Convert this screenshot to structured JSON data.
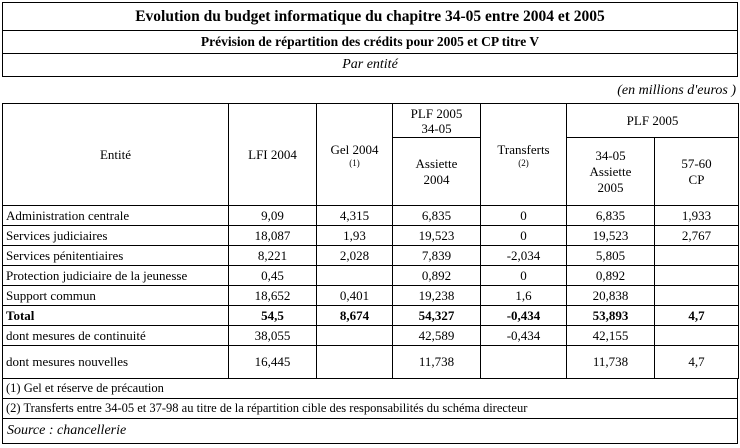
{
  "doc": {
    "title": "Evolution du budget informatique du chapitre 34-05 entre 2004 et 2005",
    "subtitle": "Prévision de répartition des crédits pour 2005 et CP titre V",
    "section_label": "Par entité",
    "unit_label": "(en millions d'euros )",
    "footnotes": [
      "(1) Gel et réserve de précaution",
      "(2) Transferts entre 34-05 et 37-98 au titre de la répartition cible des responsabilités du schéma directeur"
    ],
    "source": "Source : chancellerie"
  },
  "table": {
    "col_entity": "Entité",
    "col_lfi": "LFI 2004",
    "col_gel": "Gel 2004",
    "col_gel_note": "(1)",
    "col_plf_top_l1": "PLF 2005",
    "col_plf_top_l2": "34-05",
    "col_plf_bottom_l1": "Assiette",
    "col_plf_bottom_l2": "2004",
    "col_transferts": "Transferts",
    "col_transferts_note": "(2)",
    "col_plf2005_group": "PLF 2005",
    "col_assiette2005_l1": "34-05",
    "col_assiette2005_l2": "Assiette",
    "col_assiette2005_l3": "2005",
    "col_cp_l1": "57-60",
    "col_cp_l2": "CP",
    "rows": [
      {
        "label": "Administration centrale",
        "bold": false,
        "tall": false,
        "values": [
          "9,09",
          "4,315",
          "6,835",
          "0",
          "6,835",
          "1,933"
        ]
      },
      {
        "label": "Services judiciaires",
        "bold": false,
        "tall": false,
        "values": [
          "18,087",
          "1,93",
          "19,523",
          "0",
          "19,523",
          "2,767"
        ]
      },
      {
        "label": "Services pénitentiaires",
        "bold": false,
        "tall": false,
        "values": [
          "8,221",
          "2,028",
          "7,839",
          "-2,034",
          "5,805",
          ""
        ]
      },
      {
        "label": "Protection judiciaire de la jeunesse",
        "bold": false,
        "tall": false,
        "values": [
          "0,45",
          "",
          "0,892",
          "0",
          "0,892",
          ""
        ]
      },
      {
        "label": "Support commun",
        "bold": false,
        "tall": false,
        "values": [
          "18,652",
          "0,401",
          "19,238",
          "1,6",
          "20,838",
          ""
        ]
      },
      {
        "label": "Total",
        "bold": true,
        "tall": false,
        "values": [
          "54,5",
          "8,674",
          "54,327",
          "-0,434",
          "53,893",
          "4,7"
        ]
      },
      {
        "label": "dont mesures de continuité",
        "bold": false,
        "tall": false,
        "values": [
          "38,055",
          "",
          "42,589",
          "-0,434",
          "42,155",
          ""
        ]
      },
      {
        "label": "dont mesures nouvelles",
        "bold": false,
        "tall": true,
        "values": [
          "16,445",
          "",
          "11,738",
          "",
          "11,738",
          "4,7"
        ]
      }
    ]
  }
}
